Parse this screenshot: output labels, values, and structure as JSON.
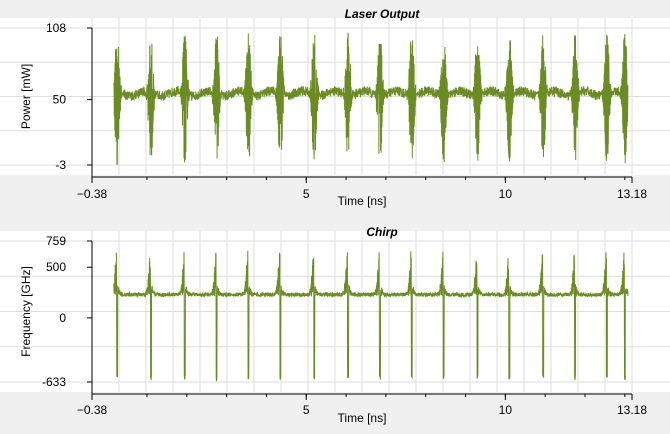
{
  "chart_data": [
    {
      "type": "line",
      "title": "Laser Output",
      "xlabel": "Time [ns]",
      "ylabel": "Power [mW]",
      "xlim": [
        -0.38,
        13.18
      ],
      "ylim": [
        -3,
        108
      ],
      "x_ticks": [
        -0.38,
        5,
        10,
        13.18
      ],
      "x_tick_labels": [
        "−0.38",
        "5",
        "10",
        "13.18"
      ],
      "y_ticks": [
        108,
        50,
        -3
      ],
      "y_tick_labels": [
        "108",
        "50",
        "-3"
      ],
      "grid": true,
      "series": [
        {
          "color": "#6b8c23",
          "baseline": 55,
          "peak_times_ns": [
            0.25,
            1.1,
            1.95,
            2.75,
            3.55,
            4.35,
            5.2,
            6.05,
            6.85,
            7.65,
            8.45,
            9.3,
            10.1,
            10.95,
            11.75,
            12.55,
            13.0
          ],
          "peak_max": 104,
          "peak_min": -2
        }
      ]
    },
    {
      "type": "line",
      "title": "Chirp",
      "xlabel": "Time [ns]",
      "ylabel": "Frequency [GHz]",
      "xlim": [
        -0.38,
        13.18
      ],
      "ylim": [
        -633,
        759
      ],
      "x_ticks": [
        -0.38,
        5,
        10,
        13.18
      ],
      "x_tick_labels": [
        "−0.38",
        "5",
        "10",
        "13.18"
      ],
      "y_ticks": [
        759,
        500,
        0,
        -633
      ],
      "y_tick_labels": [
        "759",
        "500",
        "0",
        "-633"
      ],
      "grid": true,
      "series": [
        {
          "color": "#6b8c23",
          "baseline": 230,
          "peak_times_ns": [
            0.25,
            1.1,
            1.95,
            2.75,
            3.55,
            4.35,
            5.2,
            6.05,
            6.85,
            7.65,
            8.45,
            9.3,
            10.1,
            10.95,
            11.75,
            12.55,
            13.0
          ],
          "peak_max": 690,
          "peak_min": -600
        }
      ]
    }
  ]
}
